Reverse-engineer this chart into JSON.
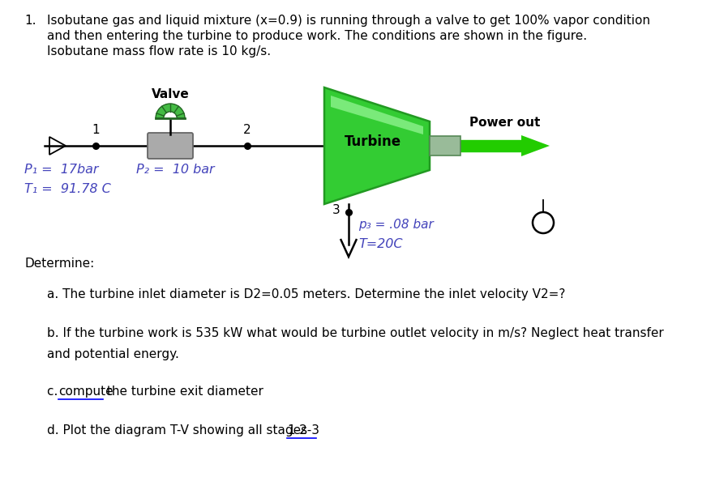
{
  "title_number": "1.",
  "title_text_line1": "Isobutane gas and liquid mixture (x=0.9) is running through a valve to get 100% vapor condition",
  "title_text_line2": "and then entering the turbine to produce work. The conditions are shown in the figure.",
  "title_text_line3": "Isobutane mass flow rate is 10 kg/s.",
  "valve_label": "Valve",
  "point1_label": "1",
  "point2_label": "2",
  "point3_label": "3",
  "turbine_label": "Turbine",
  "power_out_label": "Power out",
  "p1_label": "P₁ =  17bar",
  "t1_label": "T₁ =  91.78 C",
  "p2_label": "P₂ =  10 bar",
  "p3_label": "p₃ = .08 bar",
  "t3_label": "T=20C",
  "determine_label": "Determine:",
  "qa": "a. The turbine inlet diameter is D2=0.05 meters. Determine the inlet velocity V2=?",
  "qb1": "b. If the turbine work is 535 kW what would be turbine outlet velocity in m/s? Neglect heat transfer",
  "qb2": "and potential energy.",
  "qc_pre": "c. ",
  "qc_underline": "compute",
  "qc_rest": " the turbine exit diameter",
  "qd_pre": "d. Plot the diagram T-V showing all stages ",
  "qd_underline": "1-2-3",
  "turbine_green": "#33cc33",
  "turbine_edge": "#229922",
  "turbine_highlight": "#88ff88",
  "arrow_green": "#22cc00",
  "connector_green": "#88bb88",
  "valve_gray": "#aaaaaa",
  "valve_edge": "#666666",
  "valve_green_top": "#44bb44",
  "bg_color": "#ffffff",
  "text_color": "#000000",
  "text_blue": "#4444bb"
}
